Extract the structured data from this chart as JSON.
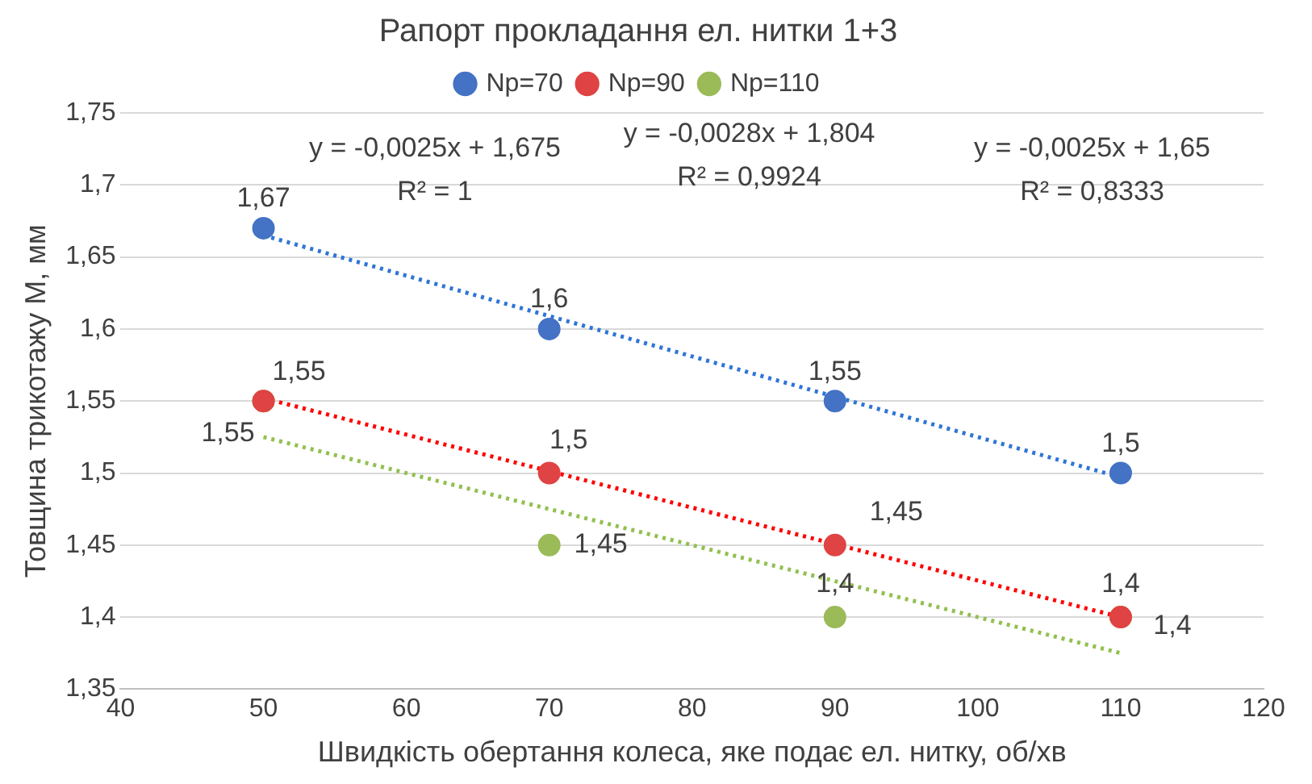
{
  "chart_data": {
    "type": "scatter",
    "title": "Рапорт прокладання ел. нитки 1+3",
    "xlabel": "Швидкість обертання колеса, яке подає ел. нитку, об/хв",
    "ylabel": "Товщина трикотажу М, мм",
    "xlim": [
      40,
      120
    ],
    "xticks": [
      40,
      50,
      60,
      70,
      80,
      90,
      100,
      110,
      120
    ],
    "ylim": [
      1.35,
      1.75
    ],
    "yticks": [
      {
        "value": 1.35,
        "label": "1,35"
      },
      {
        "value": 1.4,
        "label": "1,4"
      },
      {
        "value": 1.45,
        "label": "1,45"
      },
      {
        "value": 1.5,
        "label": "1,5"
      },
      {
        "value": 1.55,
        "label": "1,55"
      },
      {
        "value": 1.6,
        "label": "1,6"
      },
      {
        "value": 1.65,
        "label": "1,65"
      },
      {
        "value": 1.7,
        "label": "1,7"
      },
      {
        "value": 1.75,
        "label": "1,75"
      }
    ],
    "grid": "y",
    "legend": "top",
    "series": [
      {
        "name": "Np=70",
        "marker": "circle",
        "color": "#4472c4",
        "x": [
          50,
          70,
          90,
          110
        ],
        "values": [
          1.67,
          1.6,
          1.55,
          1.5
        ],
        "value_labels": [
          "1,67",
          "1,6",
          "1,55",
          "1,5"
        ]
      },
      {
        "name": "Np=90",
        "marker": "circle",
        "color": "#e04343",
        "x": [
          50,
          70,
          90,
          110
        ],
        "values": [
          1.55,
          1.5,
          1.45,
          1.4
        ],
        "value_labels": [
          "1,55",
          "1,5",
          "1,45",
          "1,4"
        ]
      },
      {
        "name": "Np=110",
        "marker": "circle",
        "color": "#9bbb59",
        "x": [
          50,
          70,
          90,
          110
        ],
        "values": [
          1.55,
          1.45,
          1.4,
          1.4
        ],
        "value_labels": [
          "1,55",
          "1,45",
          "1,4",
          "1,4"
        ]
      },
      {
        "type": "line",
        "marker": "none",
        "color": "#2e75d6",
        "line_style": "dotted",
        "x": [
          50,
          110
        ],
        "values": [
          1.665,
          1.497
        ]
      },
      {
        "type": "line",
        "marker": "none",
        "color": "#ff0000",
        "line_style": "dotted",
        "x": [
          50,
          110
        ],
        "values": [
          1.552,
          1.4
        ]
      },
      {
        "type": "line",
        "marker": "none",
        "color": "#92c050",
        "line_style": "dotted",
        "x": [
          50,
          110
        ],
        "values": [
          1.525,
          1.375
        ]
      }
    ],
    "annotations": [
      "y = -0,0025x + 1,675",
      "R² = 1",
      "y = -0,0028x + 1,804",
      "R² = 0,9924",
      "y = -0,0025x + 1,65",
      "R² = 0,8333"
    ]
  }
}
